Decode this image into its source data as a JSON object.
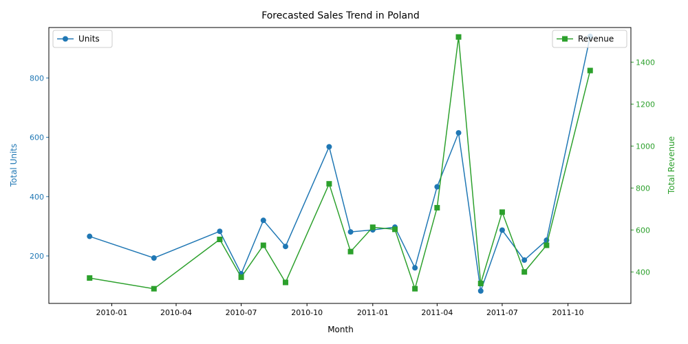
{
  "chart_data": {
    "type": "line",
    "title": "Forecasted Sales Trend in Poland",
    "xlabel": "Month",
    "ylabel_left": "Total Units",
    "ylabel_right": "Total Revenue",
    "x_ticks": [
      "2010-01",
      "2010-04",
      "2010-07",
      "2010-10",
      "2011-01",
      "2011-04",
      "2011-07",
      "2011-10"
    ],
    "y_left_ticks": [
      200,
      400,
      600,
      800
    ],
    "y_right_ticks": [
      400,
      600,
      800,
      1000,
      1200,
      1400
    ],
    "ylim_left": [
      40,
      970
    ],
    "ylim_right": [
      250,
      1565
    ],
    "xlim": [
      "2009-10-05",
      "2011-12-28"
    ],
    "grid": false,
    "series": [
      {
        "name": "Units",
        "axis": "left",
        "color": "#1f77b4",
        "marker": "circle",
        "legend_position": "top-left",
        "x": [
          "2009-12-01",
          "2010-03-01",
          "2010-06-01",
          "2010-07-01",
          "2010-08-01",
          "2010-09-01",
          "2010-11-01",
          "2010-12-01",
          "2011-01-01",
          "2011-02-01",
          "2011-03-01",
          "2011-04-01",
          "2011-05-01",
          "2011-06-01",
          "2011-07-01",
          "2011-08-01",
          "2011-09-01",
          "2011-11-01"
        ],
        "values": [
          266,
          193,
          283,
          140,
          320,
          232,
          568,
          281,
          288,
          297,
          160,
          433,
          615,
          82,
          287,
          186,
          253,
          940
        ]
      },
      {
        "name": "Revenue",
        "axis": "right",
        "color": "#2ca02c",
        "marker": "square",
        "legend_position": "top-right",
        "x": [
          "2009-12-01",
          "2010-03-01",
          "2010-06-01",
          "2010-07-01",
          "2010-08-01",
          "2010-09-01",
          "2010-11-01",
          "2010-12-01",
          "2011-01-01",
          "2011-02-01",
          "2011-03-01",
          "2011-04-01",
          "2011-05-01",
          "2011-06-01",
          "2011-07-01",
          "2011-08-01",
          "2011-09-01",
          "2011-11-01"
        ],
        "values": [
          371,
          320,
          555,
          375,
          527,
          350,
          820,
          497,
          613,
          603,
          320,
          706,
          1520,
          345,
          685,
          400,
          527,
          1360
        ]
      }
    ]
  }
}
